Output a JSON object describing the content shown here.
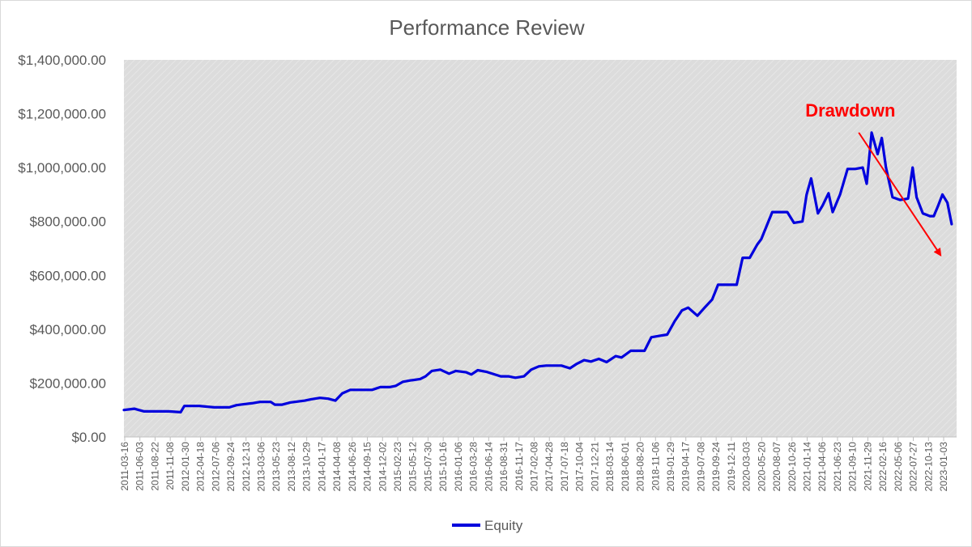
{
  "chart_data": {
    "type": "line",
    "title": "Performance Review",
    "xlabel": "",
    "ylabel": "",
    "ylim": [
      0,
      1400000
    ],
    "y_ticks": [
      {
        "value": 0,
        "label": "$0.00"
      },
      {
        "value": 200000,
        "label": "$200,000.00"
      },
      {
        "value": 400000,
        "label": "$400,000.00"
      },
      {
        "value": 600000,
        "label": "$600,000.00"
      },
      {
        "value": 800000,
        "label": "$800,000.00"
      },
      {
        "value": 1000000,
        "label": "$1,000,000.00"
      },
      {
        "value": 1200000,
        "label": "$1,200,000.00"
      },
      {
        "value": 1400000,
        "label": "$1,400,000.00"
      }
    ],
    "x_tick_labels": [
      "2011-03-16",
      "2011-06-03",
      "2011-08-22",
      "2011-11-08",
      "2012-01-30",
      "2012-04-18",
      "2012-07-06",
      "2012-09-24",
      "2012-12-13",
      "2013-03-06",
      "2013-05-23",
      "2013-08-12",
      "2013-10-29",
      "2014-01-17",
      "2014-04-08",
      "2014-06-26",
      "2014-09-15",
      "2014-12-02",
      "2015-02-23",
      "2015-05-12",
      "2015-07-30",
      "2015-10-16",
      "2016-01-06",
      "2016-03-28",
      "2016-06-14",
      "2016-08-31",
      "2016-11-17",
      "2017-02-08",
      "2017-04-28",
      "2017-07-18",
      "2017-10-04",
      "2017-12-21",
      "2018-03-14",
      "2018-06-01",
      "2018-08-20",
      "2018-11-06",
      "2019-01-29",
      "2019-04-17",
      "2019-07-08",
      "2019-09-24",
      "2019-12-11",
      "2020-03-03",
      "2020-05-20",
      "2020-08-07",
      "2020-10-26",
      "2021-01-14",
      "2021-04-06",
      "2021-06-23",
      "2021-09-10",
      "2021-11-29",
      "2022-02-16",
      "2022-05-06",
      "2022-07-27",
      "2022-10-13",
      "2023-01-03"
    ],
    "grid": false,
    "legend_position": "bottom",
    "series": [
      {
        "name": "Equity",
        "color": "#0000dd",
        "x": [
          "2011-03-16",
          "2011-05-10",
          "2011-06-03",
          "2011-07-01",
          "2011-08-22",
          "2011-11-08",
          "2012-01-10",
          "2012-01-30",
          "2012-03-01",
          "2012-04-18",
          "2012-05-20",
          "2012-07-06",
          "2012-09-24",
          "2012-11-01",
          "2012-12-13",
          "2013-01-20",
          "2013-03-06",
          "2013-05-01",
          "2013-05-23",
          "2013-07-01",
          "2013-08-12",
          "2013-10-29",
          "2013-12-01",
          "2014-01-17",
          "2014-03-01",
          "2014-04-08",
          "2014-05-15",
          "2014-06-26",
          "2014-09-15",
          "2014-10-20",
          "2014-12-02",
          "2015-01-20",
          "2015-02-23",
          "2015-04-01",
          "2015-05-12",
          "2015-07-01",
          "2015-07-30",
          "2015-09-01",
          "2015-10-16",
          "2015-12-01",
          "2016-01-06",
          "2016-03-01",
          "2016-03-28",
          "2016-05-01",
          "2016-06-14",
          "2016-08-31",
          "2016-10-10",
          "2016-11-17",
          "2017-01-01",
          "2017-02-08",
          "2017-03-20",
          "2017-04-28",
          "2017-07-18",
          "2017-09-01",
          "2017-10-04",
          "2017-11-15",
          "2017-12-21",
          "2018-02-01",
          "2018-03-14",
          "2018-05-01",
          "2018-06-01",
          "2018-07-20",
          "2018-08-20",
          "2018-10-01",
          "2018-11-06",
          "2018-12-15",
          "2019-01-29",
          "2019-03-10",
          "2019-04-17",
          "2019-05-20",
          "2019-07-08",
          "2019-08-15",
          "2019-09-24",
          "2019-10-25",
          "2019-12-11",
          "2020-02-01",
          "2020-03-03",
          "2020-04-10",
          "2020-05-20",
          "2020-06-10",
          "2020-08-07",
          "2020-09-15",
          "2020-10-26",
          "2020-11-30",
          "2021-01-14",
          "2021-02-05",
          "2021-03-01",
          "2021-04-06",
          "2021-05-01",
          "2021-06-01",
          "2021-06-23",
          "2021-08-01",
          "2021-09-10",
          "2021-10-20",
          "2021-11-29",
          "2021-12-20",
          "2022-01-15",
          "2022-02-16",
          "2022-03-10",
          "2022-04-01",
          "2022-05-06",
          "2022-06-15",
          "2022-07-27",
          "2022-08-20",
          "2022-09-10",
          "2022-10-13",
          "2022-11-20",
          "2022-12-10",
          "2023-01-03",
          "2023-01-25",
          "2023-02-20",
          "2023-03-15"
        ],
        "values": [
          100000,
          105000,
          100000,
          95000,
          95000,
          95000,
          92000,
          115000,
          115000,
          115000,
          113000,
          110000,
          110000,
          118000,
          122000,
          125000,
          130000,
          130000,
          120000,
          120000,
          128000,
          135000,
          140000,
          145000,
          142000,
          135000,
          162000,
          175000,
          175000,
          175000,
          185000,
          185000,
          190000,
          205000,
          210000,
          215000,
          225000,
          245000,
          250000,
          235000,
          245000,
          240000,
          232000,
          248000,
          242000,
          225000,
          225000,
          220000,
          225000,
          250000,
          262000,
          265000,
          265000,
          255000,
          270000,
          285000,
          280000,
          290000,
          278000,
          300000,
          295000,
          320000,
          320000,
          320000,
          370000,
          375000,
          380000,
          430000,
          470000,
          480000,
          450000,
          480000,
          510000,
          565000,
          565000,
          565000,
          665000,
          665000,
          715000,
          735000,
          835000,
          835000,
          835000,
          795000,
          800000,
          900000,
          960000,
          830000,
          860000,
          905000,
          835000,
          900000,
          995000,
          995000,
          1000000,
          940000,
          1130000,
          1050000,
          1110000,
          1000000,
          890000,
          880000,
          885000,
          1000000,
          890000,
          830000,
          820000,
          820000,
          860000,
          900000,
          870000,
          790000
        ]
      }
    ],
    "annotations": [
      {
        "text": "Drawdown",
        "color": "#ff0000",
        "arrow_from": [
          "2021-11-08",
          1130000
        ],
        "arrow_to": [
          "2023-01-15",
          675000
        ]
      }
    ]
  }
}
